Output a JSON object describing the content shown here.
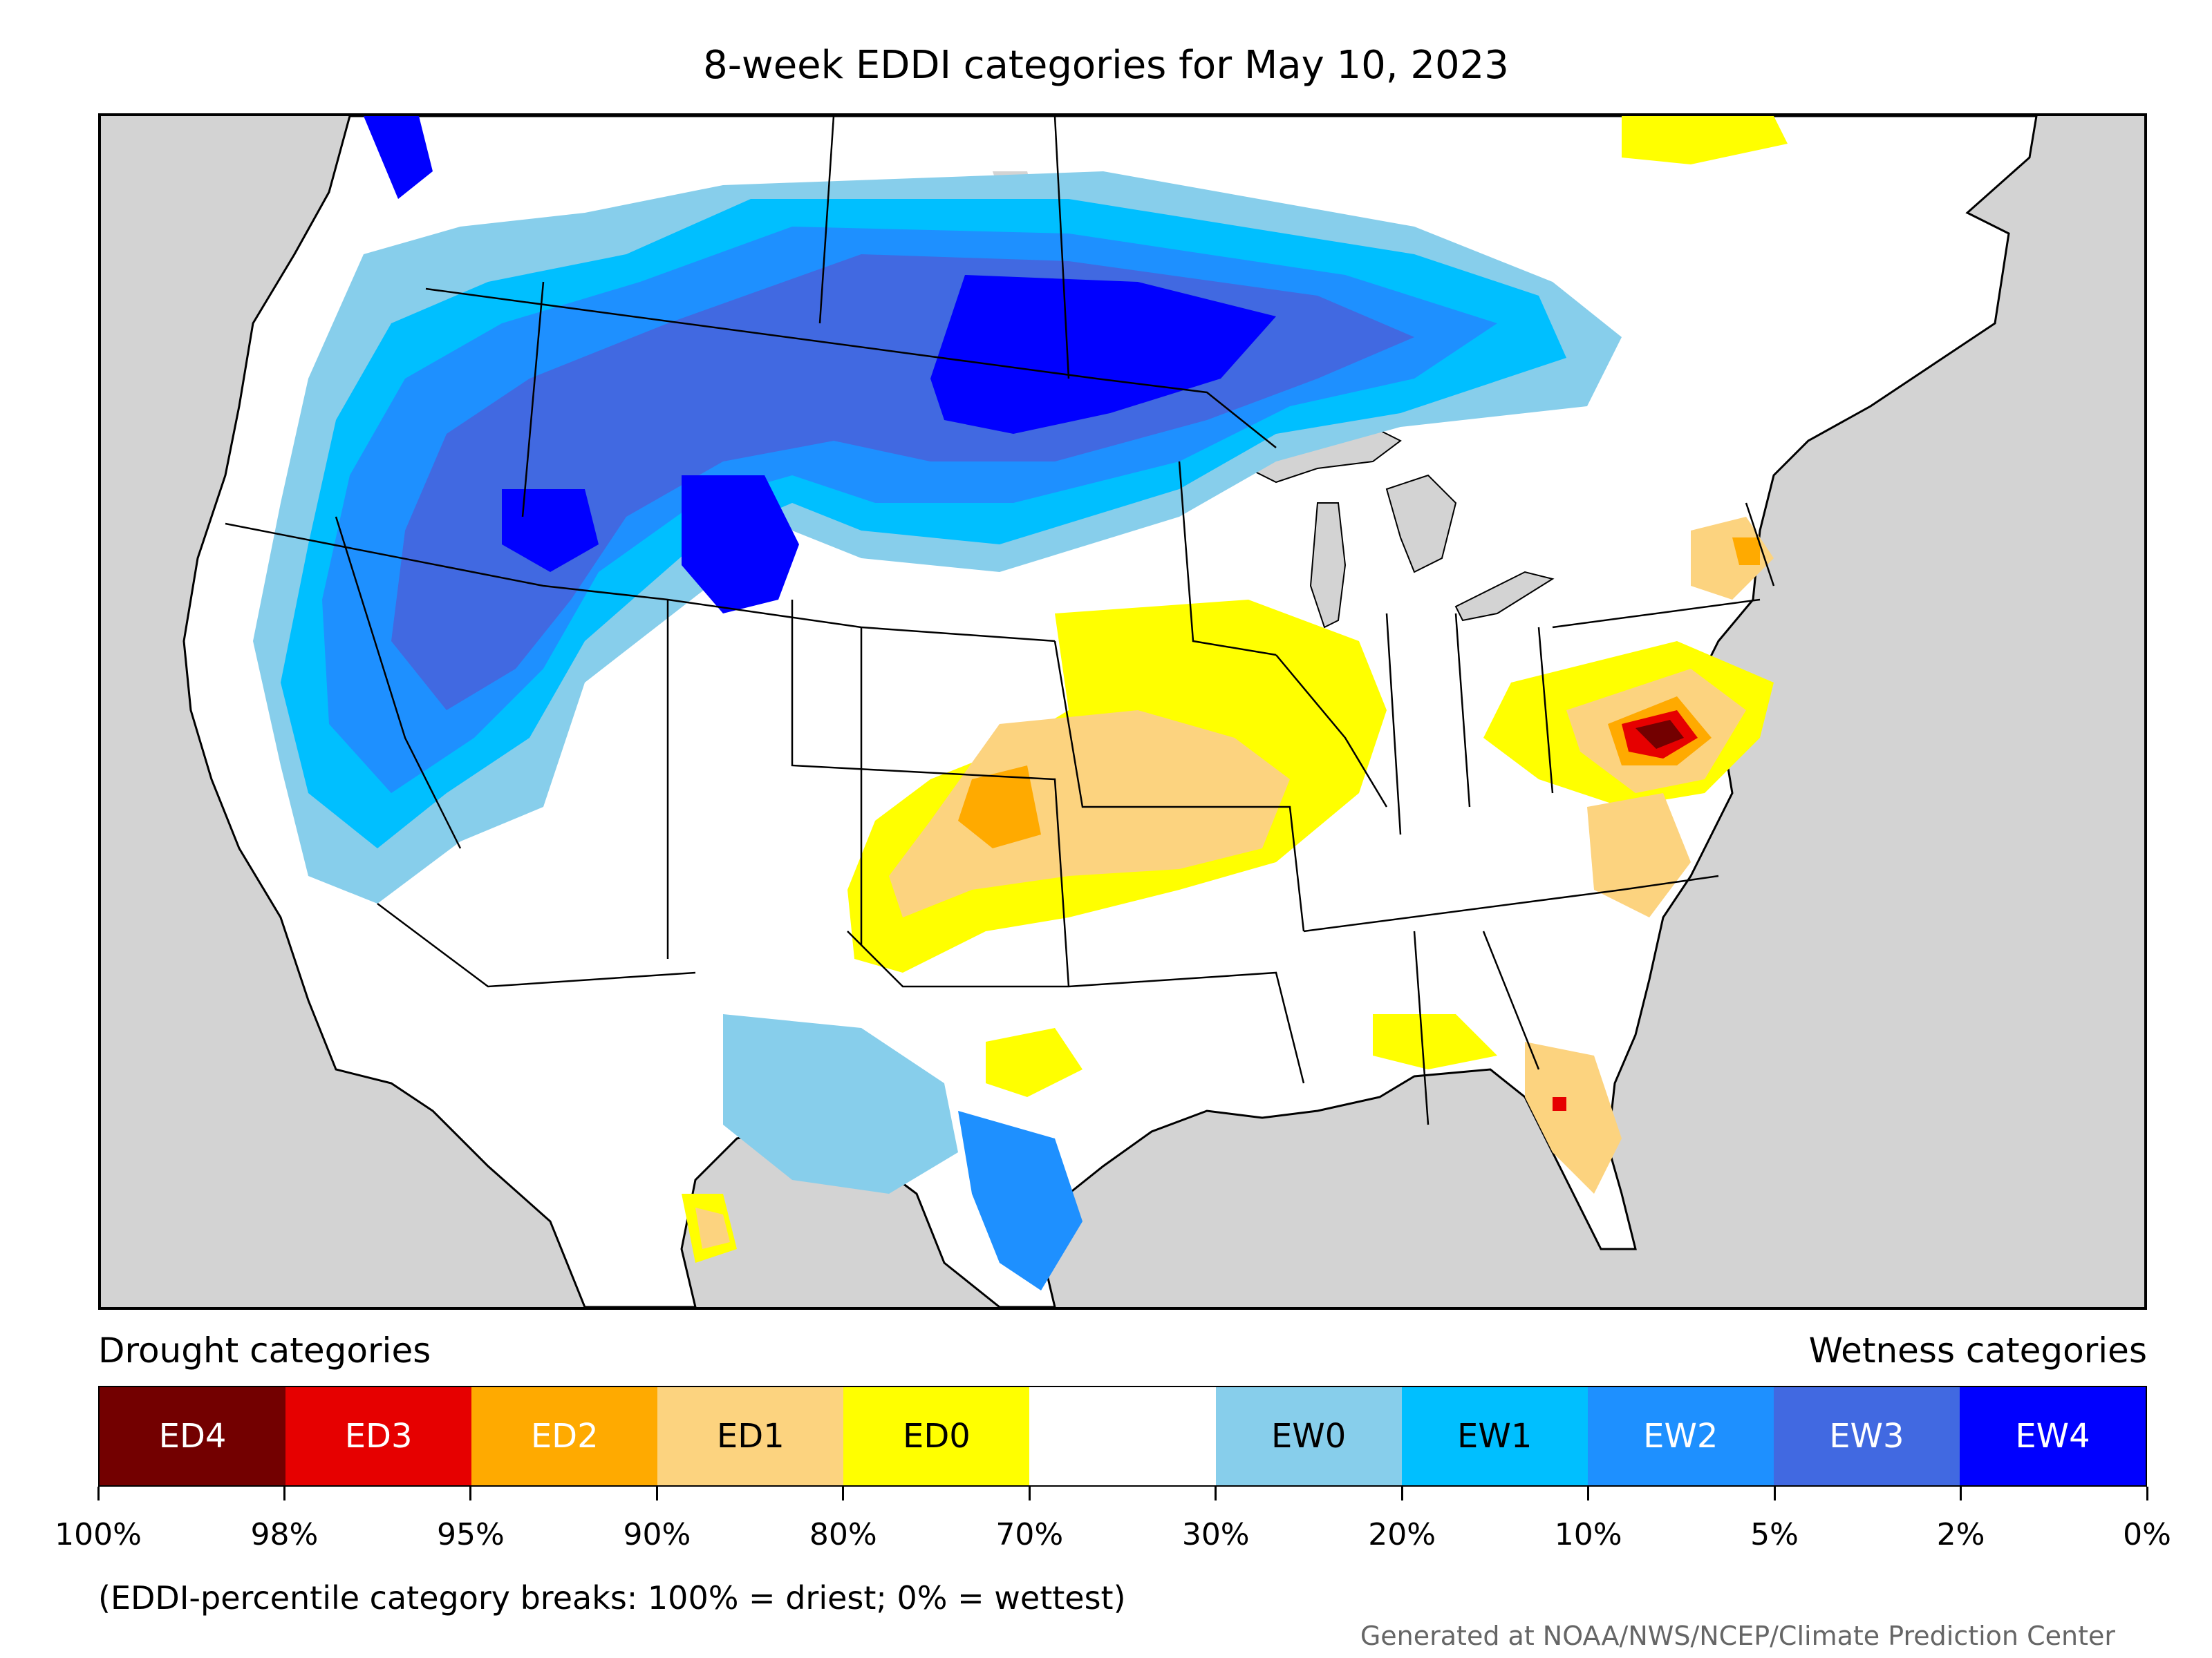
{
  "title": "8-week EDDI categories for May 10, 2023",
  "legend": {
    "left_label": "Drought categories",
    "right_label": "Wetness categories",
    "categories": [
      {
        "label": "ED4",
        "color": "#730000",
        "text_color": "#ffffff"
      },
      {
        "label": "ED3",
        "color": "#e60000",
        "text_color": "#ffffff"
      },
      {
        "label": "ED2",
        "color": "#ffaa00",
        "text_color": "#ffffff"
      },
      {
        "label": "ED1",
        "color": "#fcd37f",
        "text_color": "#000000"
      },
      {
        "label": "ED0",
        "color": "#ffff00",
        "text_color": "#000000"
      },
      {
        "label": "",
        "color": "#ffffff",
        "text_color": "#000000"
      },
      {
        "label": "EW0",
        "color": "#87ceeb",
        "text_color": "#000000"
      },
      {
        "label": "EW1",
        "color": "#00bfff",
        "text_color": "#000000"
      },
      {
        "label": "EW2",
        "color": "#1e90ff",
        "text_color": "#ffffff"
      },
      {
        "label": "EW3",
        "color": "#4169e1",
        "text_color": "#ffffff"
      },
      {
        "label": "EW4",
        "color": "#0000ff",
        "text_color": "#ffffff"
      }
    ],
    "tick_labels": [
      "100%",
      "98%",
      "95%",
      "90%",
      "80%",
      "70%",
      "30%",
      "20%",
      "10%",
      "5%",
      "2%",
      "0%"
    ]
  },
  "note": "(EDDI-percentile category breaks: 100% = driest; 0% = wettest)",
  "credit": "Generated at NOAA/NWS/NCEP/Climate Prediction Center",
  "map": {
    "background_color": "#d3d3d3",
    "water_color": "#d3d3d3",
    "land_color": "#ffffff",
    "border_color": "#000000"
  }
}
